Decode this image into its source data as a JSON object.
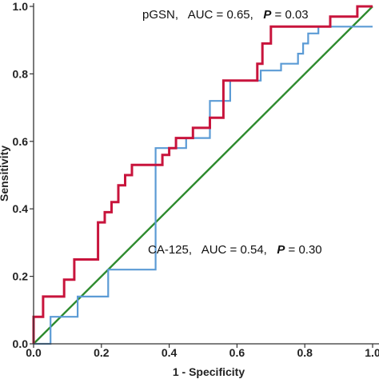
{
  "chart_data": {
    "type": "line",
    "title": "",
    "xlabel": "1 - Specificity",
    "ylabel": "Sensitivity",
    "xlim": [
      0,
      1
    ],
    "ylim": [
      0,
      1
    ],
    "x_ticks": [
      "0.0",
      "0.2",
      "0.4",
      "0.6",
      "0.8",
      "1.0"
    ],
    "y_ticks": [
      "0.0",
      "0.2",
      "0.4",
      "0.6",
      "0.8",
      "1.0"
    ],
    "grid": false,
    "colors": {
      "pgsn": "#c8143c",
      "ca125": "#5b9bd5",
      "reference": "#2e8b2e"
    },
    "annotations": {
      "pgsn": {
        "prefix": "pGSN,   AUC = 0.65,   ",
        "p_label": "P",
        "suffix": " = 0.03"
      },
      "ca125": {
        "prefix": "CA-125,   AUC = 0.54,   ",
        "p_label": "P",
        "suffix": " = 0.30"
      }
    },
    "series": [
      {
        "key": "pgsn",
        "x": [
          0,
          0,
          0.028,
          0.028,
          0.09,
          0.09,
          0.12,
          0.12,
          0.19,
          0.19,
          0.21,
          0.21,
          0.23,
          0.23,
          0.25,
          0.25,
          0.27,
          0.27,
          0.29,
          0.29,
          0.32,
          0.32,
          0.38,
          0.38,
          0.4,
          0.4,
          0.42,
          0.42,
          0.47,
          0.47,
          0.52,
          0.52,
          0.56,
          0.56,
          0.585,
          0.585,
          0.66,
          0.66,
          0.675,
          0.675,
          0.7,
          0.7,
          0.875,
          0.875,
          0.955,
          0.955,
          1.0
        ],
        "y": [
          0,
          0.08,
          0.08,
          0.14,
          0.14,
          0.19,
          0.19,
          0.25,
          0.25,
          0.36,
          0.36,
          0.39,
          0.39,
          0.42,
          0.42,
          0.47,
          0.47,
          0.5,
          0.5,
          0.53,
          0.53,
          0.53,
          0.53,
          0.56,
          0.56,
          0.58,
          0.58,
          0.61,
          0.61,
          0.64,
          0.64,
          0.67,
          0.67,
          0.78,
          0.78,
          0.78,
          0.78,
          0.83,
          0.83,
          0.89,
          0.89,
          0.94,
          0.94,
          0.97,
          0.97,
          1.0,
          1.0
        ]
      },
      {
        "key": "ca125",
        "x": [
          0,
          0.05,
          0.05,
          0.13,
          0.13,
          0.22,
          0.22,
          0.36,
          0.36,
          0.45,
          0.45,
          0.52,
          0.52,
          0.58,
          0.58,
          0.67,
          0.67,
          0.73,
          0.73,
          0.78,
          0.78,
          0.795,
          0.795,
          0.81,
          0.81,
          0.84,
          0.84,
          1.0
        ],
        "y": [
          0,
          0,
          0.08,
          0.08,
          0.14,
          0.14,
          0.22,
          0.22,
          0.58,
          0.58,
          0.61,
          0.61,
          0.72,
          0.72,
          0.78,
          0.78,
          0.81,
          0.81,
          0.83,
          0.83,
          0.86,
          0.86,
          0.89,
          0.89,
          0.92,
          0.92,
          0.94,
          0.94
        ]
      },
      {
        "key": "reference",
        "x": [
          0,
          1
        ],
        "y": [
          0,
          1
        ]
      }
    ]
  }
}
